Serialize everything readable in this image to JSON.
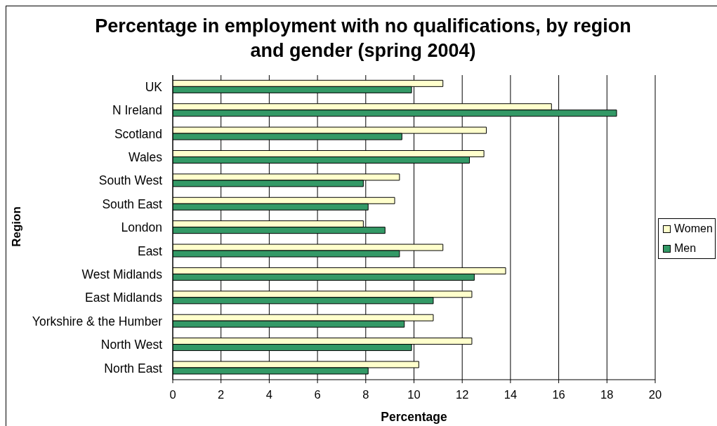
{
  "chart_data": {
    "type": "bar",
    "orientation": "horizontal",
    "title": "Percentage in employment with no qualifications, by region and gender (spring 2004)",
    "xlabel": "Percentage",
    "ylabel": "Region",
    "categories": [
      "UK",
      "N Ireland",
      "Scotland",
      "Wales",
      "South West",
      "South East",
      "London",
      "East",
      "West Midlands",
      "East Midlands",
      "Yorkshire & the Humber",
      "North West",
      "North East"
    ],
    "series": [
      {
        "name": "Women",
        "color": "#ffffcc",
        "values": [
          11.2,
          15.7,
          13.0,
          12.9,
          9.4,
          9.2,
          7.9,
          11.2,
          13.8,
          12.4,
          10.8,
          12.4,
          10.2
        ]
      },
      {
        "name": "Men",
        "color": "#339966",
        "values": [
          9.9,
          18.4,
          9.5,
          12.3,
          7.9,
          8.1,
          8.8,
          9.4,
          12.5,
          10.8,
          9.6,
          9.9,
          8.1
        ]
      }
    ],
    "xlim": [
      0,
      20
    ],
    "xticks": [
      0,
      2,
      4,
      6,
      8,
      10,
      12,
      14,
      16,
      18,
      20
    ],
    "grid": "x",
    "legend": "right"
  }
}
